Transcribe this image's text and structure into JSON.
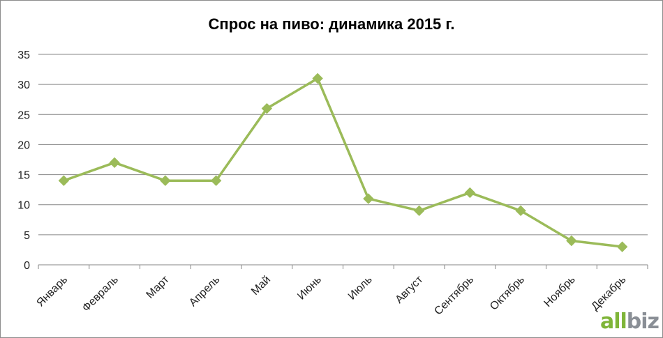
{
  "title": "Спрос на пиво: динамика 2015 г.",
  "logo": {
    "part1": "all",
    "part2": "biz"
  },
  "colors": {
    "series": "#9bbb59",
    "grid": "#868686",
    "axis": "#868686"
  },
  "chart_data": {
    "type": "line",
    "title": "Спрос на пиво: динамика 2015 г.",
    "categories": [
      "Январь",
      "Февраль",
      "Март",
      "Апрель",
      "Май",
      "Июнь",
      "Июль",
      "Август",
      "Сентябрь",
      "Октябрь",
      "Ноябрь",
      "Декабрь"
    ],
    "series": [
      {
        "values": [
          14,
          17,
          14,
          14,
          26,
          31,
          11,
          9,
          12,
          9,
          4,
          3
        ]
      }
    ],
    "ylim": [
      0,
      35
    ],
    "yticks": [
      0,
      5,
      10,
      15,
      20,
      25,
      30,
      35
    ],
    "grid": true,
    "legend": "none",
    "marker": "diamond"
  }
}
